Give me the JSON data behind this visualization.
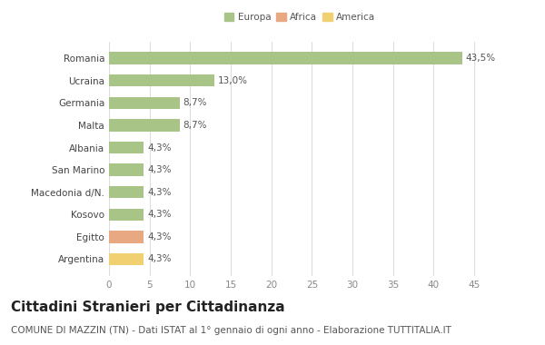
{
  "categories": [
    "Romania",
    "Ucraina",
    "Germania",
    "Malta",
    "Albania",
    "San Marino",
    "Macedonia d/N.",
    "Kosovo",
    "Egitto",
    "Argentina"
  ],
  "values": [
    43.5,
    13.0,
    8.7,
    8.7,
    4.3,
    4.3,
    4.3,
    4.3,
    4.3,
    4.3
  ],
  "labels": [
    "43,5%",
    "13,0%",
    "8,7%",
    "8,7%",
    "4,3%",
    "4,3%",
    "4,3%",
    "4,3%",
    "4,3%",
    "4,3%"
  ],
  "bar_colors": [
    "#a8c486",
    "#a8c486",
    "#a8c486",
    "#a8c486",
    "#a8c486",
    "#a8c486",
    "#a8c486",
    "#a8c486",
    "#e8a882",
    "#f0d070"
  ],
  "continent": [
    "Europa",
    "Europa",
    "Europa",
    "Europa",
    "Europa",
    "Europa",
    "Europa",
    "Europa",
    "Africa",
    "America"
  ],
  "legend": [
    {
      "label": "Europa",
      "color": "#a8c486"
    },
    {
      "label": "Africa",
      "color": "#e8a882"
    },
    {
      "label": "America",
      "color": "#f0d070"
    }
  ],
  "xlim": [
    0,
    47
  ],
  "xticks": [
    0,
    5,
    10,
    15,
    20,
    25,
    30,
    35,
    40,
    45
  ],
  "title": "Cittadini Stranieri per Cittadinanza",
  "subtitle": "COMUNE DI MAZZIN (TN) - Dati ISTAT al 1° gennaio di ogni anno - Elaborazione TUTTITALIA.IT",
  "background_color": "#ffffff",
  "grid_color": "#dddddd",
  "title_fontsize": 11,
  "subtitle_fontsize": 7.5,
  "label_fontsize": 7.5,
  "tick_fontsize": 7.5,
  "ytick_fontsize": 7.5
}
